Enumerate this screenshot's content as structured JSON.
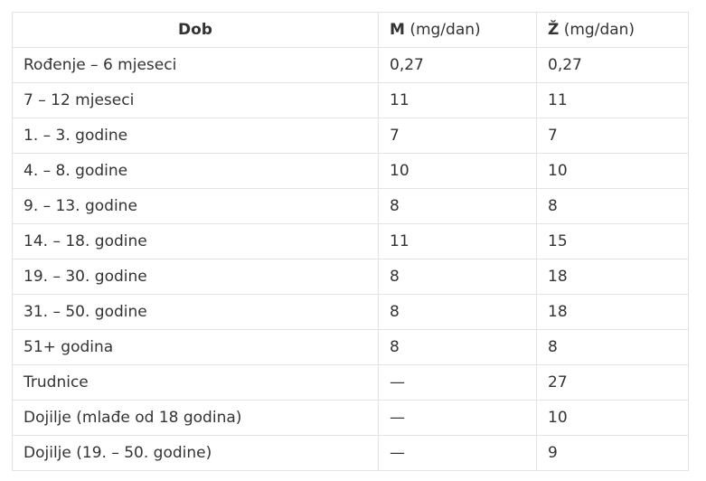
{
  "table": {
    "headers": [
      {
        "bold": "Dob",
        "rest": ""
      },
      {
        "bold": "M",
        "rest": " (mg/dan)"
      },
      {
        "bold": "Ž",
        "rest": " (mg/dan)"
      }
    ],
    "rows": [
      [
        "Rođenje – 6 mjeseci",
        "0,27",
        "0,27"
      ],
      [
        "7 – 12 mjeseci",
        "11",
        "11"
      ],
      [
        "1. – 3. godine",
        "7",
        "7"
      ],
      [
        "4. – 8. godine",
        "10",
        "10"
      ],
      [
        "9. – 13. godine",
        "8",
        "8"
      ],
      [
        "14. – 18. godine",
        "11",
        "15"
      ],
      [
        "19. – 30. godine",
        "8",
        "18"
      ],
      [
        "31. – 50. godine",
        "8",
        "18"
      ],
      [
        "51+ godina",
        "8",
        "8"
      ],
      [
        "Trudnice",
        "—",
        "27"
      ],
      [
        "Dojilje (mlađe od 18 godina)",
        "—",
        "10"
      ],
      [
        "Dojilje (19. – 50. godine)",
        "—",
        "9"
      ]
    ]
  }
}
